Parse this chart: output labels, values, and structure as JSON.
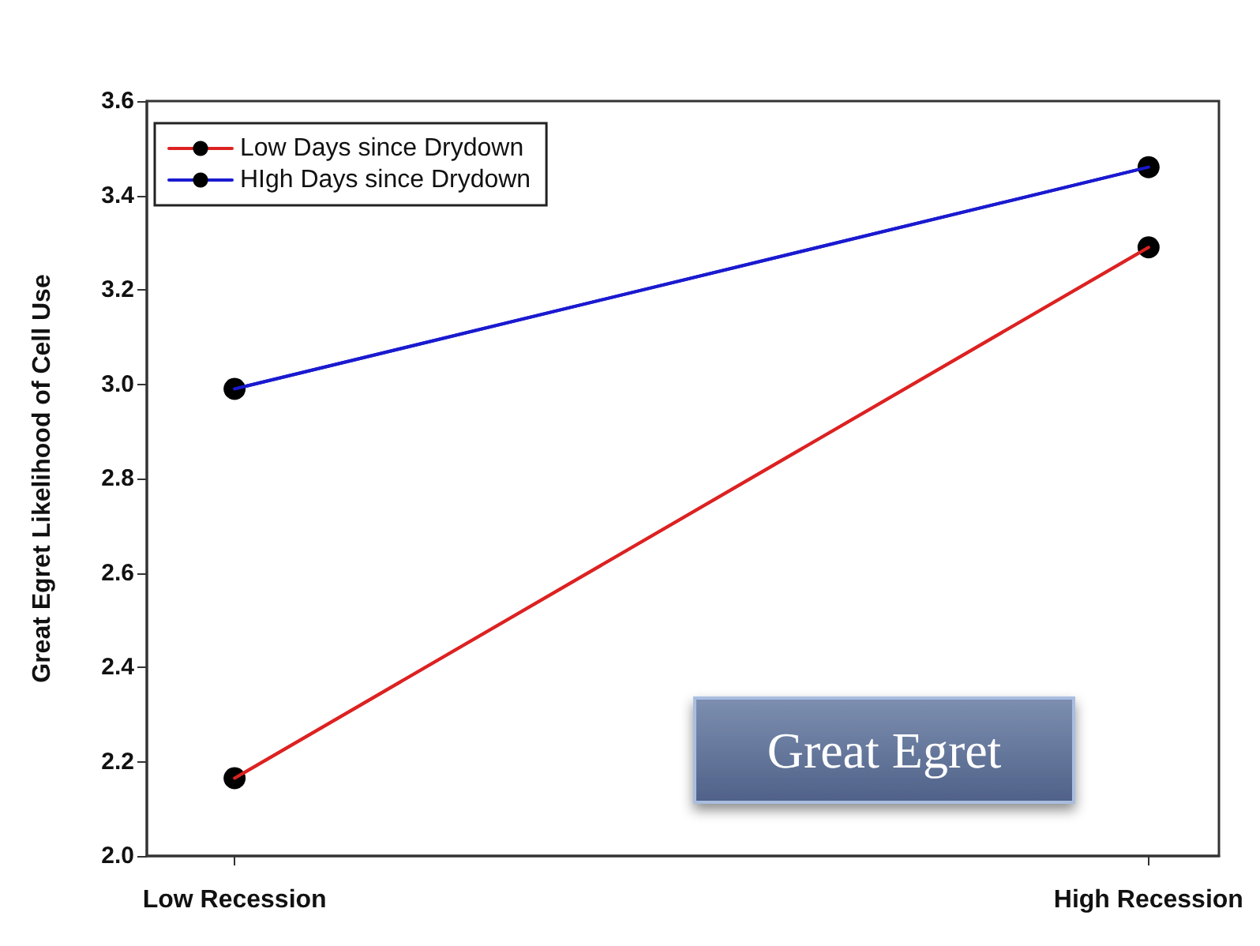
{
  "chart_data": {
    "type": "line",
    "ylabel": "Great Egret Likelihood of Cell Use",
    "categories": [
      "Low Recession",
      "High Recession"
    ],
    "series": [
      {
        "name": "Low Days since Drydown",
        "color": "#dd2222",
        "values": [
          2.165,
          3.29
        ]
      },
      {
        "name": "HIgh Days since Drydown",
        "color": "#1a1ad0",
        "values": [
          2.99,
          3.46
        ]
      }
    ],
    "ylim": [
      2.0,
      3.6
    ],
    "yticks": [
      {
        "value": 2.0,
        "label": "2.0"
      },
      2.2,
      2.4,
      2.6,
      2.8,
      {
        "value": 3.0,
        "label": "3.0"
      },
      3.2,
      3.4,
      3.6
    ],
    "marker": "circle",
    "line_style": "solid",
    "legend": "top left",
    "grid": false,
    "annotations": [
      "Great Egret"
    ]
  }
}
